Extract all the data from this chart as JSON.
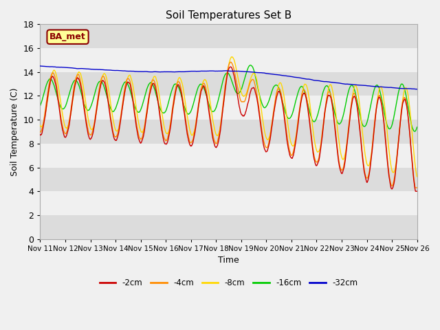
{
  "title": "Soil Temperatures Set B",
  "xlabel": "Time",
  "ylabel": "Soil Temperature (C)",
  "ylim": [
    0,
    18
  ],
  "yticks": [
    0,
    2,
    4,
    6,
    8,
    10,
    12,
    14,
    16,
    18
  ],
  "x_labels": [
    "Nov 11",
    "Nov 12",
    "Nov 13",
    "Nov 14",
    "Nov 15",
    "Nov 16",
    "Nov 17",
    "Nov 18",
    "Nov 19",
    "Nov 20",
    "Nov 21",
    "Nov 22",
    "Nov 23",
    "Nov 24",
    "Nov 25",
    "Nov 26"
  ],
  "annotation_text": "BA_met",
  "annotation_color": "#8B0000",
  "annotation_bg": "#FFFF99",
  "colors": {
    "-2cm": "#CC0000",
    "-4cm": "#FF8C00",
    "-8cm": "#FFD700",
    "-16cm": "#00CC00",
    "-32cm": "#0000CC"
  },
  "bg_bands": [
    [
      0,
      2,
      "#DCDCDC"
    ],
    [
      2,
      4,
      "#F0F0F0"
    ],
    [
      4,
      6,
      "#DCDCDC"
    ],
    [
      6,
      8,
      "#F0F0F0"
    ],
    [
      8,
      10,
      "#DCDCDC"
    ],
    [
      10,
      12,
      "#F0F0F0"
    ],
    [
      12,
      14,
      "#DCDCDC"
    ],
    [
      14,
      16,
      "#F0F0F0"
    ],
    [
      16,
      18,
      "#DCDCDC"
    ]
  ],
  "plot_bg": "#F0F0F0",
  "grid_color": "#FFFFFF",
  "line_width": 1.0
}
